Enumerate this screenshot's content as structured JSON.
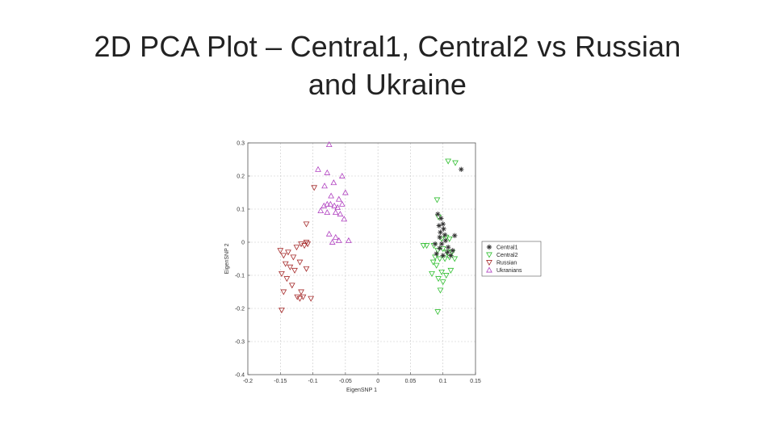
{
  "slide": {
    "title_line1": "2D PCA Plot – Central1, Central2 vs Russian",
    "title_line2": "and Ukraine"
  },
  "chart_data": {
    "type": "scatter",
    "title": "",
    "xlabel": "EigenSNP 1",
    "ylabel": "EigenSNP 2",
    "xlim": [
      -0.2,
      0.15
    ],
    "ylim": [
      -0.4,
      0.3
    ],
    "xticks": [
      -0.2,
      -0.15,
      -0.1,
      -0.05,
      0,
      0.05,
      0.1,
      0.15
    ],
    "xtick_labels": [
      "-0.2",
      "-0.15",
      "-0.1",
      "-0.05",
      "0",
      "0.05",
      "0.1",
      "0.15"
    ],
    "yticks": [
      -0.4,
      -0.3,
      -0.2,
      -0.1,
      0,
      0.1,
      0.2,
      0.3
    ],
    "ytick_labels": [
      "-0.4",
      "-0.3",
      "-0.2",
      "-0.1",
      "0",
      "0.1",
      "0.2",
      "0.3"
    ],
    "grid": true,
    "legend_position": "right",
    "series": [
      {
        "name": "Central1",
        "marker": "star",
        "color": "#333333",
        "points": [
          [
            0.092,
            0.085
          ],
          [
            0.097,
            0.072
          ],
          [
            0.1,
            0.055
          ],
          [
            0.094,
            0.05
          ],
          [
            0.101,
            0.04
          ],
          [
            0.096,
            0.03
          ],
          [
            0.103,
            0.022
          ],
          [
            0.095,
            0.015
          ],
          [
            0.104,
            0.005
          ],
          [
            0.098,
            -0.005
          ],
          [
            0.088,
            -0.005
          ],
          [
            0.095,
            -0.018
          ],
          [
            0.107,
            -0.03
          ],
          [
            0.09,
            -0.035
          ],
          [
            0.1,
            -0.04
          ],
          [
            0.112,
            -0.04
          ],
          [
            0.118,
            0.02
          ],
          [
            0.108,
            -0.015
          ],
          [
            0.115,
            -0.025
          ],
          [
            0.128,
            0.22
          ]
        ]
      },
      {
        "name": "Central2",
        "marker": "triangle-down",
        "color": "#2fbf2f",
        "points": [
          [
            0.108,
            0.245
          ],
          [
            0.119,
            0.24
          ],
          [
            0.091,
            0.128
          ],
          [
            0.093,
            0.076
          ],
          [
            0.098,
            0.01
          ],
          [
            0.105,
            0.015
          ],
          [
            0.11,
            0.01
          ],
          [
            0.075,
            -0.01
          ],
          [
            0.086,
            -0.01
          ],
          [
            0.092,
            -0.025
          ],
          [
            0.1,
            -0.02
          ],
          [
            0.106,
            -0.03
          ],
          [
            0.114,
            -0.03
          ],
          [
            0.088,
            -0.045
          ],
          [
            0.095,
            -0.05
          ],
          [
            0.103,
            -0.05
          ],
          [
            0.11,
            -0.045
          ],
          [
            0.118,
            -0.05
          ],
          [
            0.09,
            -0.07
          ],
          [
            0.098,
            -0.09
          ],
          [
            0.105,
            -0.1
          ],
          [
            0.112,
            -0.085
          ],
          [
            0.093,
            -0.11
          ],
          [
            0.1,
            -0.12
          ],
          [
            0.096,
            -0.145
          ],
          [
            0.092,
            -0.21
          ],
          [
            0.083,
            -0.095
          ],
          [
            0.07,
            -0.01
          ],
          [
            0.085,
            -0.06
          ]
        ]
      },
      {
        "name": "Russian",
        "marker": "triangle-down",
        "color": "#a52a2a",
        "points": [
          [
            -0.11,
            0.055
          ],
          [
            -0.113,
            -0.01
          ],
          [
            -0.118,
            -0.005
          ],
          [
            -0.108,
            -0.005
          ],
          [
            -0.15,
            -0.025
          ],
          [
            -0.145,
            -0.04
          ],
          [
            -0.138,
            -0.03
          ],
          [
            -0.13,
            -0.045
          ],
          [
            -0.125,
            -0.015
          ],
          [
            -0.12,
            -0.06
          ],
          [
            -0.11,
            -0.08
          ],
          [
            -0.142,
            -0.065
          ],
          [
            -0.135,
            -0.075
          ],
          [
            -0.128,
            -0.085
          ],
          [
            -0.148,
            -0.095
          ],
          [
            -0.14,
            -0.11
          ],
          [
            -0.132,
            -0.13
          ],
          [
            -0.118,
            -0.15
          ],
          [
            -0.145,
            -0.15
          ],
          [
            -0.12,
            -0.17
          ],
          [
            -0.115,
            -0.165
          ],
          [
            -0.103,
            -0.17
          ],
          [
            -0.124,
            -0.165
          ],
          [
            -0.148,
            -0.205
          ],
          [
            -0.098,
            0.165
          ],
          [
            -0.11,
            0.0
          ]
        ]
      },
      {
        "name": "Ukranians",
        "marker": "triangle-up",
        "color": "#b040c0",
        "points": [
          [
            -0.075,
            0.295
          ],
          [
            -0.092,
            0.22
          ],
          [
            -0.078,
            0.21
          ],
          [
            -0.055,
            0.2
          ],
          [
            -0.068,
            0.18
          ],
          [
            -0.082,
            0.17
          ],
          [
            -0.05,
            0.15
          ],
          [
            -0.072,
            0.14
          ],
          [
            -0.06,
            0.13
          ],
          [
            -0.078,
            0.115
          ],
          [
            -0.073,
            0.115
          ],
          [
            -0.067,
            0.11
          ],
          [
            -0.062,
            0.105
          ],
          [
            -0.083,
            0.11
          ],
          [
            -0.055,
            0.115
          ],
          [
            -0.088,
            0.095
          ],
          [
            -0.065,
            0.09
          ],
          [
            -0.078,
            0.09
          ],
          [
            -0.058,
            0.085
          ],
          [
            -0.052,
            0.07
          ],
          [
            -0.075,
            0.025
          ],
          [
            -0.065,
            0.015
          ],
          [
            -0.045,
            0.005
          ],
          [
            -0.06,
            0.005
          ],
          [
            -0.07,
            0.0
          ]
        ]
      }
    ]
  }
}
